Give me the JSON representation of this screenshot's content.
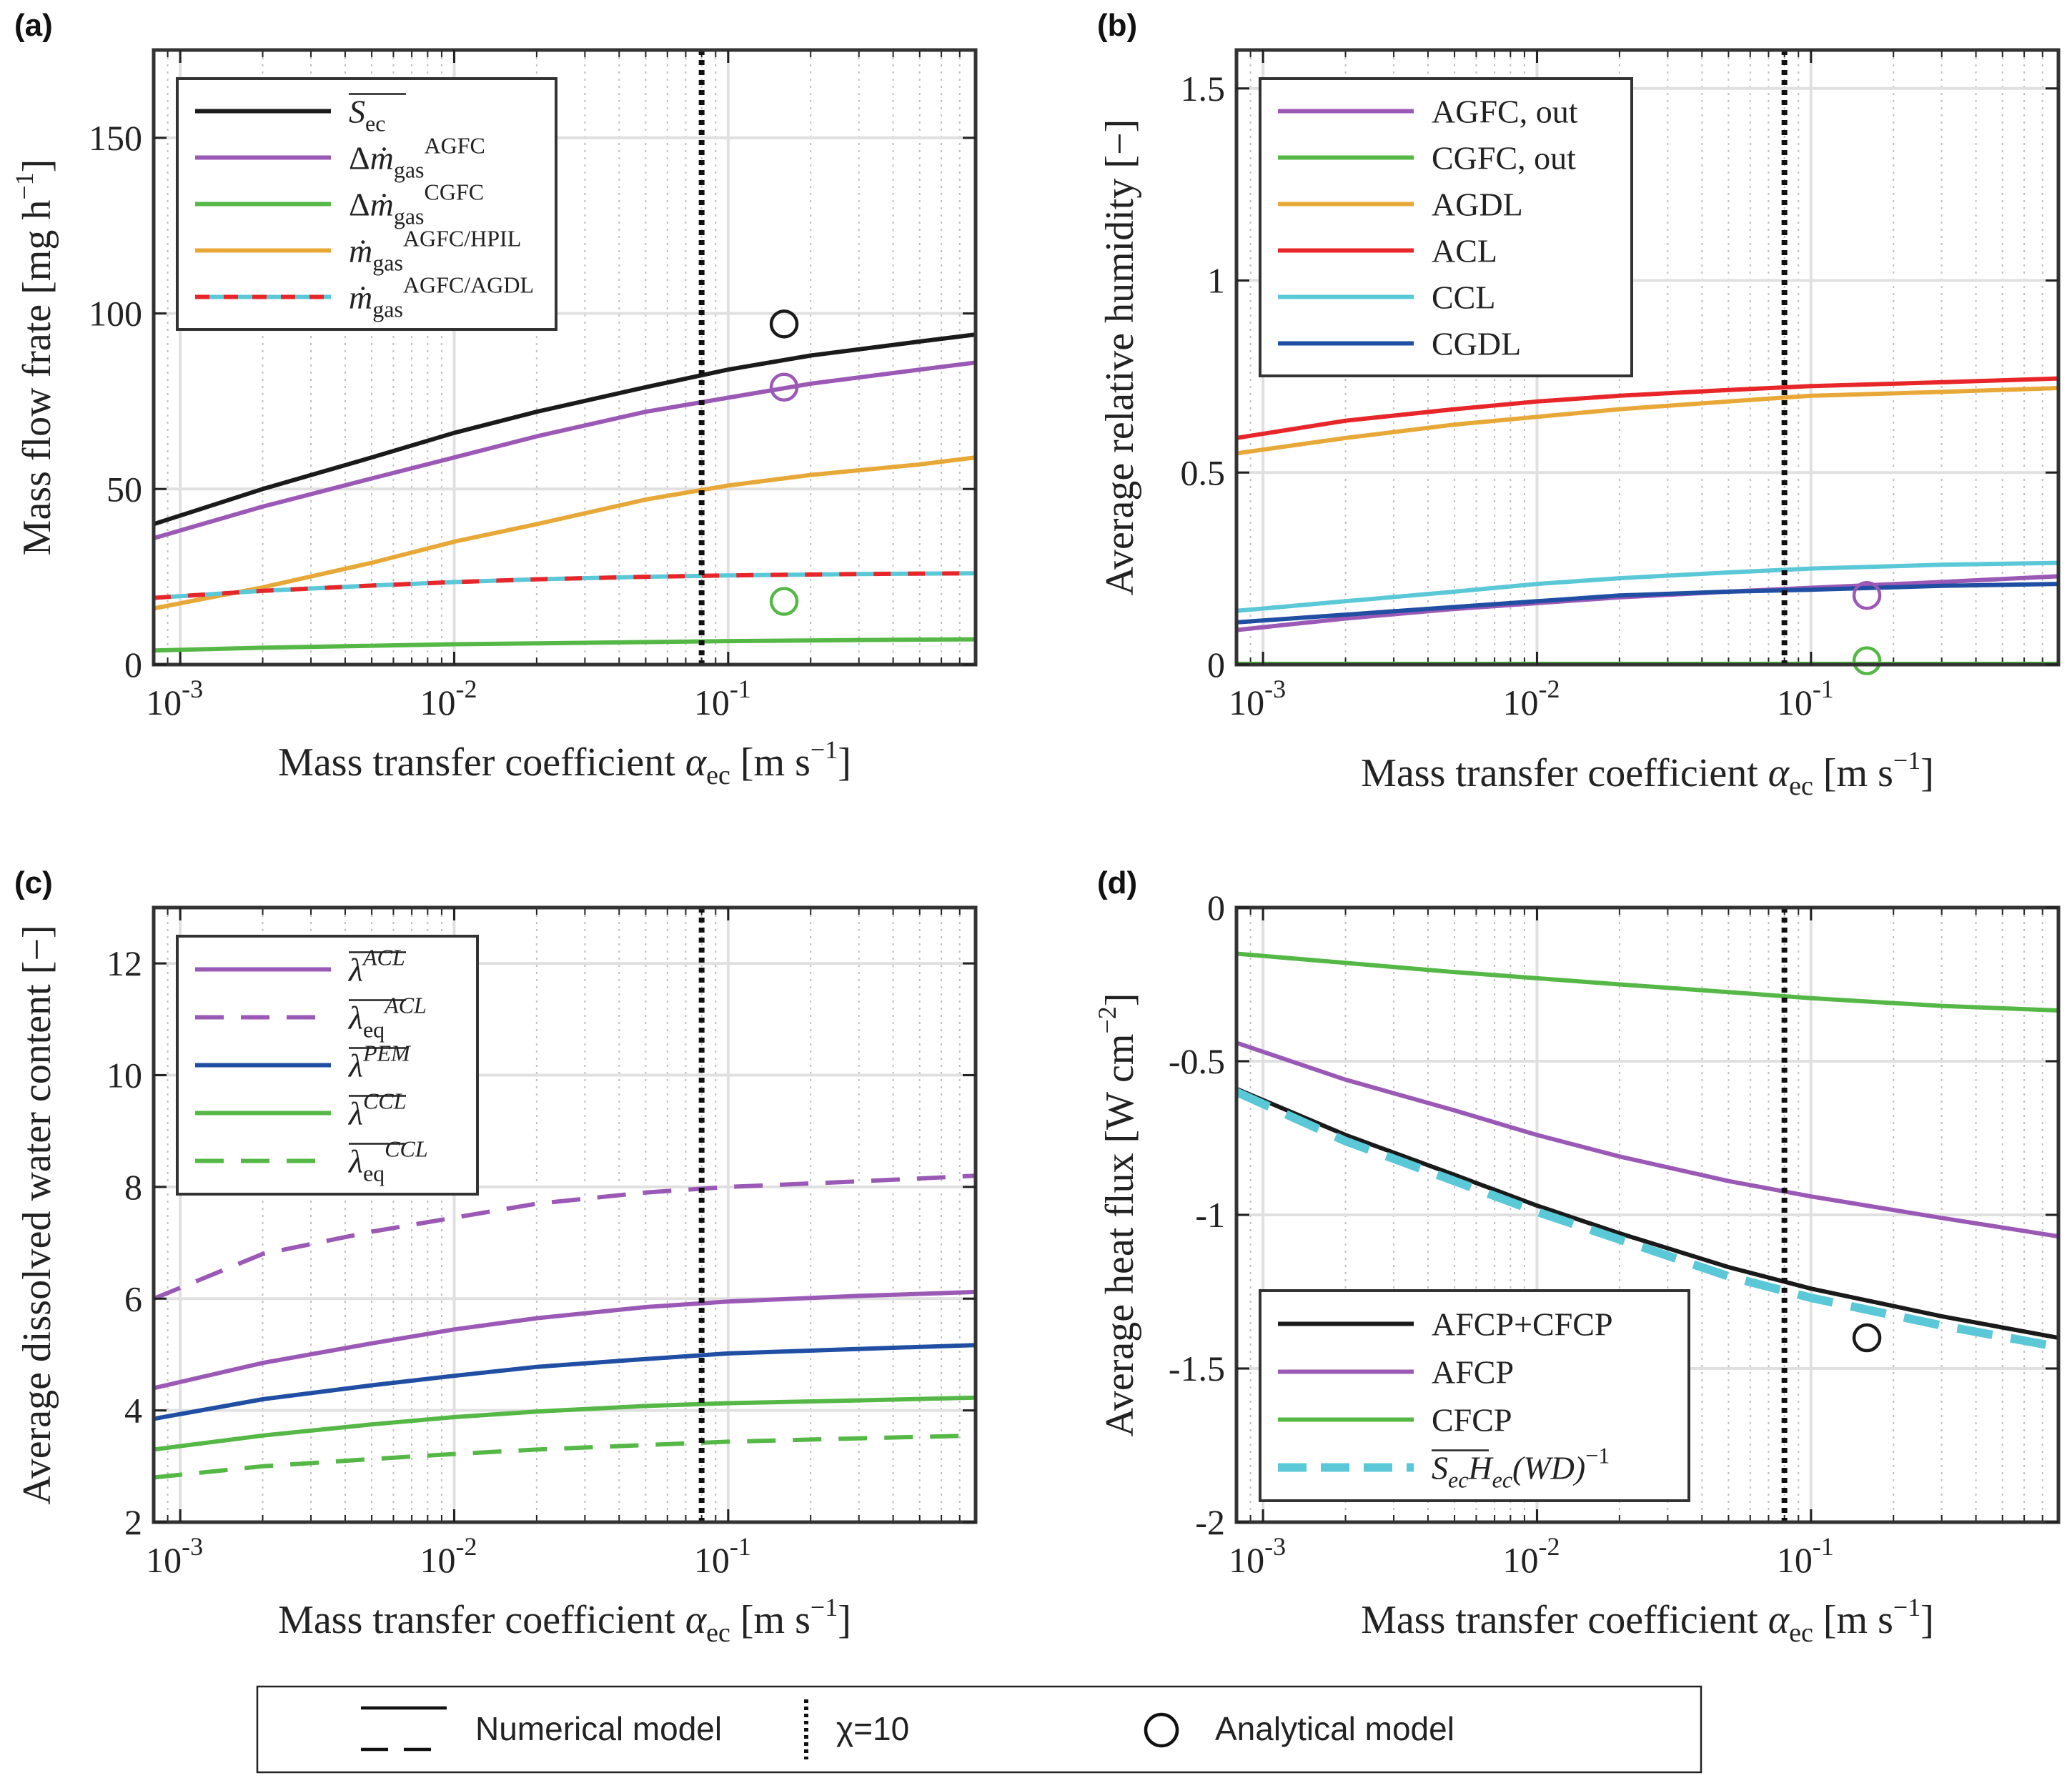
{
  "figure": {
    "bottom_legend": {
      "numerical": "Numerical model",
      "chi": "χ=10",
      "analytical": "Analytical model"
    }
  },
  "chart_data": [
    {
      "id": "a",
      "panel_label": "(a)",
      "type": "line",
      "xscale": "log",
      "xlim": [
        0.0008,
        0.8
      ],
      "ylim": [
        0,
        175
      ],
      "xticks": [
        0.001,
        0.01,
        0.1
      ],
      "xtick_labels": [
        [
          "10",
          "-3"
        ],
        [
          "10",
          "-2"
        ],
        [
          "10",
          "-1"
        ]
      ],
      "yticks": [
        0,
        50,
        100,
        150
      ],
      "ytick_labels": [
        "0",
        "50",
        "100",
        "150"
      ],
      "xlabel": "Mass transfer coefficient α_ec [m s^-1]",
      "ylabel": "Mass flow frate [mg h^-1]",
      "vline": 0.08,
      "legend_position": "top-left",
      "series": [
        {
          "name": "S̄ec",
          "label": [
            [
              "S",
              "i"
            ],
            [
              "ec",
              "sub"
            ]
          ],
          "overline": true,
          "color": "#1a1a1a",
          "dash": "solid",
          "x": [
            0.0008,
            0.002,
            0.005,
            0.01,
            0.02,
            0.05,
            0.1,
            0.2,
            0.5,
            0.8
          ],
          "y": [
            40,
            50,
            59,
            66,
            72,
            79,
            84,
            88,
            92,
            94
          ]
        },
        {
          "name": "Δṁgas AGFC",
          "label": [
            [
              "Δ",
              "n"
            ],
            [
              "ṁ",
              "i"
            ],
            [
              "gas",
              "sub"
            ],
            [
              "AGFC",
              "sup"
            ]
          ],
          "color": "#9b59b6",
          "dash": "solid",
          "x": [
            0.0008,
            0.002,
            0.005,
            0.01,
            0.02,
            0.05,
            0.1,
            0.2,
            0.5,
            0.8
          ],
          "y": [
            36,
            45,
            53,
            59,
            65,
            72,
            76,
            80,
            84,
            86
          ]
        },
        {
          "name": "Δṁgas CGFC",
          "label": [
            [
              "Δ",
              "n"
            ],
            [
              "ṁ",
              "i"
            ],
            [
              "gas",
              "sub"
            ],
            [
              "CGFC",
              "sup"
            ]
          ],
          "color": "#55b846",
          "dash": "solid",
          "x": [
            0.0008,
            0.002,
            0.01,
            0.05,
            0.1,
            0.3,
            0.8
          ],
          "y": [
            4,
            4.8,
            5.8,
            6.4,
            6.7,
            7,
            7.2
          ]
        },
        {
          "name": "ṁgas AGFC/HPIL",
          "label": [
            [
              "ṁ",
              "i"
            ],
            [
              "gas",
              "sub"
            ],
            [
              "AGFC/HPIL",
              "sup"
            ]
          ],
          "color": "#e8a838",
          "dash": "solid",
          "x": [
            0.0008,
            0.002,
            0.005,
            0.01,
            0.02,
            0.05,
            0.1,
            0.2,
            0.5,
            0.8
          ],
          "y": [
            16,
            22,
            29,
            35,
            40,
            47,
            51,
            54,
            57,
            59
          ]
        },
        {
          "name": "ṁgas AGFC/AGDL",
          "label": [
            [
              "ṁ",
              "i"
            ],
            [
              "gas",
              "sub"
            ],
            [
              "AGFC/AGDL",
              "sup"
            ]
          ],
          "color": "#e8262a",
          "color2": "#5bc8d8",
          "dash": "dual",
          "x": [
            0.0008,
            0.002,
            0.005,
            0.01,
            0.02,
            0.05,
            0.1,
            0.3,
            0.8
          ],
          "y": [
            19,
            21,
            22.5,
            23.5,
            24.3,
            25,
            25.4,
            25.8,
            26
          ]
        }
      ],
      "markers": [
        {
          "x": 0.16,
          "y": 97,
          "color": "#1a1a1a"
        },
        {
          "x": 0.16,
          "y": 79,
          "color": "#9b59b6"
        },
        {
          "x": 0.16,
          "y": 18,
          "color": "#55b846"
        }
      ]
    },
    {
      "id": "b",
      "panel_label": "(b)",
      "type": "line",
      "xscale": "log",
      "xlim": [
        0.0008,
        0.8
      ],
      "ylim": [
        0,
        1.6
      ],
      "xticks": [
        0.001,
        0.01,
        0.1
      ],
      "xtick_labels": [
        [
          "10",
          "-3"
        ],
        [
          "10",
          "-2"
        ],
        [
          "10",
          "-1"
        ]
      ],
      "yticks": [
        0,
        0.5,
        1,
        1.5
      ],
      "ytick_labels": [
        "0",
        "0.5",
        "1",
        "1.5"
      ],
      "xlabel": "Mass transfer coefficient α_ec [m s^-1]",
      "ylabel": "Average relative humidity [−]",
      "vline": 0.08,
      "legend_position": "top-left",
      "series": [
        {
          "name": "AGFC, out",
          "label": [
            [
              "AGFC, out",
              "n"
            ]
          ],
          "color": "#9b59b6",
          "dash": "solid",
          "x": [
            0.0008,
            0.002,
            0.005,
            0.01,
            0.02,
            0.05,
            0.1,
            0.3,
            0.8
          ],
          "y": [
            0.09,
            0.12,
            0.145,
            0.16,
            0.175,
            0.19,
            0.2,
            0.215,
            0.23
          ]
        },
        {
          "name": "CGFC, out",
          "label": [
            [
              "CGFC, out",
              "n"
            ]
          ],
          "color": "#55b846",
          "dash": "solid",
          "x": [
            0.0008,
            0.8
          ],
          "y": [
            0.002,
            0.002
          ]
        },
        {
          "name": "AGDL",
          "label": [
            [
              "AGDL",
              "n"
            ]
          ],
          "color": "#e8a838",
          "dash": "solid",
          "x": [
            0.0008,
            0.002,
            0.005,
            0.01,
            0.02,
            0.05,
            0.1,
            0.3,
            0.8
          ],
          "y": [
            0.55,
            0.59,
            0.625,
            0.645,
            0.665,
            0.685,
            0.7,
            0.71,
            0.72
          ]
        },
        {
          "name": "ACL",
          "label": [
            [
              "ACL",
              "n"
            ]
          ],
          "color": "#e8262a",
          "dash": "solid",
          "x": [
            0.0008,
            0.002,
            0.005,
            0.01,
            0.02,
            0.05,
            0.1,
            0.3,
            0.8
          ],
          "y": [
            0.59,
            0.635,
            0.665,
            0.685,
            0.7,
            0.715,
            0.725,
            0.735,
            0.745
          ]
        },
        {
          "name": "CCL",
          "label": [
            [
              "CCL",
              "n"
            ]
          ],
          "color": "#5bc8d8",
          "dash": "solid",
          "x": [
            0.0008,
            0.002,
            0.005,
            0.01,
            0.02,
            0.05,
            0.1,
            0.3,
            0.8
          ],
          "y": [
            0.14,
            0.165,
            0.19,
            0.21,
            0.225,
            0.24,
            0.25,
            0.26,
            0.265
          ]
        },
        {
          "name": "CGDL",
          "label": [
            [
              "CGDL",
              "n"
            ]
          ],
          "color": "#1f4ea3",
          "dash": "solid",
          "x": [
            0.0008,
            0.002,
            0.005,
            0.01,
            0.02,
            0.05,
            0.1,
            0.3,
            0.8
          ],
          "y": [
            0.11,
            0.13,
            0.15,
            0.165,
            0.18,
            0.19,
            0.195,
            0.205,
            0.21
          ]
        }
      ],
      "markers": [
        {
          "x": 0.16,
          "y": 0.18,
          "color": "#9b59b6"
        },
        {
          "x": 0.16,
          "y": 0.01,
          "color": "#55b846"
        }
      ]
    },
    {
      "id": "c",
      "panel_label": "(c)",
      "type": "line",
      "xscale": "log",
      "xlim": [
        0.0008,
        0.8
      ],
      "ylim": [
        2,
        13
      ],
      "xticks": [
        0.001,
        0.01,
        0.1
      ],
      "xtick_labels": [
        [
          "10",
          "-3"
        ],
        [
          "10",
          "-2"
        ],
        [
          "10",
          "-1"
        ]
      ],
      "yticks": [
        2,
        4,
        6,
        8,
        10,
        12
      ],
      "ytick_labels": [
        "2",
        "4",
        "6",
        "8",
        "10",
        "12"
      ],
      "xlabel": "Mass transfer coefficient α_ec [m s^-1]",
      "ylabel": "Average dissolved water content [−]",
      "vline": 0.08,
      "legend_position": "top-left",
      "series": [
        {
          "name": "λ̄ ACL",
          "label": [
            [
              "λ",
              "i"
            ],
            [
              "ACL",
              "sup-i"
            ]
          ],
          "overline": true,
          "color": "#9b59b6",
          "dash": "solid",
          "x": [
            0.0008,
            0.002,
            0.005,
            0.01,
            0.02,
            0.05,
            0.1,
            0.3,
            0.8
          ],
          "y": [
            4.4,
            4.85,
            5.2,
            5.45,
            5.65,
            5.85,
            5.95,
            6.05,
            6.12
          ]
        },
        {
          "name": "λ̄eq ACL",
          "label": [
            [
              "λ",
              "i"
            ],
            [
              "eq",
              "sub"
            ],
            [
              "ACL",
              "sup-i"
            ]
          ],
          "overline": true,
          "color": "#9b59b6",
          "dash": "dashed",
          "x": [
            0.0008,
            0.002,
            0.005,
            0.01,
            0.02,
            0.05,
            0.1,
            0.3,
            0.8
          ],
          "y": [
            6,
            6.8,
            7.2,
            7.45,
            7.7,
            7.9,
            8.0,
            8.1,
            8.2
          ]
        },
        {
          "name": "λ̄ PEM",
          "label": [
            [
              "λ",
              "i"
            ],
            [
              "PEM",
              "sup-i"
            ]
          ],
          "overline": true,
          "color": "#1f4ea3",
          "dash": "solid",
          "x": [
            0.0008,
            0.002,
            0.005,
            0.01,
            0.02,
            0.05,
            0.1,
            0.3,
            0.8
          ],
          "y": [
            3.85,
            4.2,
            4.45,
            4.62,
            4.78,
            4.92,
            5.02,
            5.1,
            5.17
          ]
        },
        {
          "name": "λ̄ CCL",
          "label": [
            [
              "λ",
              "i"
            ],
            [
              "CCL",
              "sup-i"
            ]
          ],
          "overline": true,
          "color": "#55b846",
          "dash": "solid",
          "x": [
            0.0008,
            0.002,
            0.005,
            0.01,
            0.02,
            0.05,
            0.1,
            0.3,
            0.8
          ],
          "y": [
            3.3,
            3.55,
            3.75,
            3.88,
            3.98,
            4.08,
            4.13,
            4.18,
            4.23
          ]
        },
        {
          "name": "λ̄eq CCL",
          "label": [
            [
              "λ",
              "i"
            ],
            [
              "eq",
              "sub"
            ],
            [
              "CCL",
              "sup-i"
            ]
          ],
          "overline": true,
          "color": "#55b846",
          "dash": "dashed",
          "x": [
            0.0008,
            0.002,
            0.005,
            0.01,
            0.02,
            0.05,
            0.1,
            0.3,
            0.8
          ],
          "y": [
            2.8,
            3.0,
            3.13,
            3.22,
            3.3,
            3.38,
            3.44,
            3.5,
            3.55
          ]
        }
      ],
      "markers": []
    },
    {
      "id": "d",
      "panel_label": "(d)",
      "type": "line",
      "xscale": "log",
      "xlim": [
        0.0008,
        0.8
      ],
      "ylim": [
        -2,
        0
      ],
      "xticks": [
        0.001,
        0.01,
        0.1
      ],
      "xtick_labels": [
        [
          "10",
          "-3"
        ],
        [
          "10",
          "-2"
        ],
        [
          "10",
          "-1"
        ]
      ],
      "yticks": [
        -2,
        -1.5,
        -1,
        -0.5,
        0
      ],
      "ytick_labels": [
        "-2",
        "-1.5",
        "-1",
        "-0.5",
        "0"
      ],
      "xlabel": "Mass transfer coefficient α_ec [m s^-1]",
      "ylabel": "Average heat flux [W cm^-2]",
      "vline": 0.08,
      "legend_position": "bottom-left",
      "series": [
        {
          "name": "AFCP+CFCP",
          "label": [
            [
              "AFCP+CFCP",
              "n"
            ]
          ],
          "color": "#1a1a1a",
          "dash": "solid",
          "x": [
            0.0008,
            0.002,
            0.005,
            0.01,
            0.02,
            0.05,
            0.1,
            0.3,
            0.8
          ],
          "y": [
            -0.59,
            -0.74,
            -0.87,
            -0.97,
            -1.06,
            -1.17,
            -1.24,
            -1.33,
            -1.4
          ]
        },
        {
          "name": "AFCP",
          "label": [
            [
              "AFCP",
              "n"
            ]
          ],
          "color": "#9b59b6",
          "dash": "solid",
          "x": [
            0.0008,
            0.002,
            0.005,
            0.01,
            0.02,
            0.05,
            0.1,
            0.3,
            0.8
          ],
          "y": [
            -0.44,
            -0.56,
            -0.66,
            -0.74,
            -0.81,
            -0.89,
            -0.94,
            -1.01,
            -1.07
          ]
        },
        {
          "name": "CFCP",
          "label": [
            [
              "CFCP",
              "n"
            ]
          ],
          "color": "#55b846",
          "dash": "solid",
          "x": [
            0.0008,
            0.002,
            0.005,
            0.01,
            0.02,
            0.05,
            0.1,
            0.3,
            0.8
          ],
          "y": [
            -0.15,
            -0.18,
            -0.21,
            -0.23,
            -0.25,
            -0.275,
            -0.295,
            -0.32,
            -0.335
          ]
        },
        {
          "name": "S̄ecHec(WD)^-1",
          "label": [
            [
              "S",
              "i"
            ],
            [
              "ec",
              "sub-i"
            ],
            [
              "H",
              "i"
            ],
            [
              "ec",
              "sub-i"
            ],
            [
              "(WD)",
              "i"
            ],
            [
              "−1",
              "sup"
            ]
          ],
          "overline": true,
          "color": "#5bc8d8",
          "dash": "bigdash",
          "x": [
            0.0008,
            0.002,
            0.005,
            0.01,
            0.02,
            0.05,
            0.1,
            0.3,
            0.8
          ],
          "y": [
            -0.6,
            -0.76,
            -0.89,
            -0.99,
            -1.08,
            -1.2,
            -1.27,
            -1.36,
            -1.43
          ]
        }
      ],
      "markers": [
        {
          "x": 0.16,
          "y": -1.4,
          "color": "#1a1a1a"
        }
      ]
    }
  ]
}
